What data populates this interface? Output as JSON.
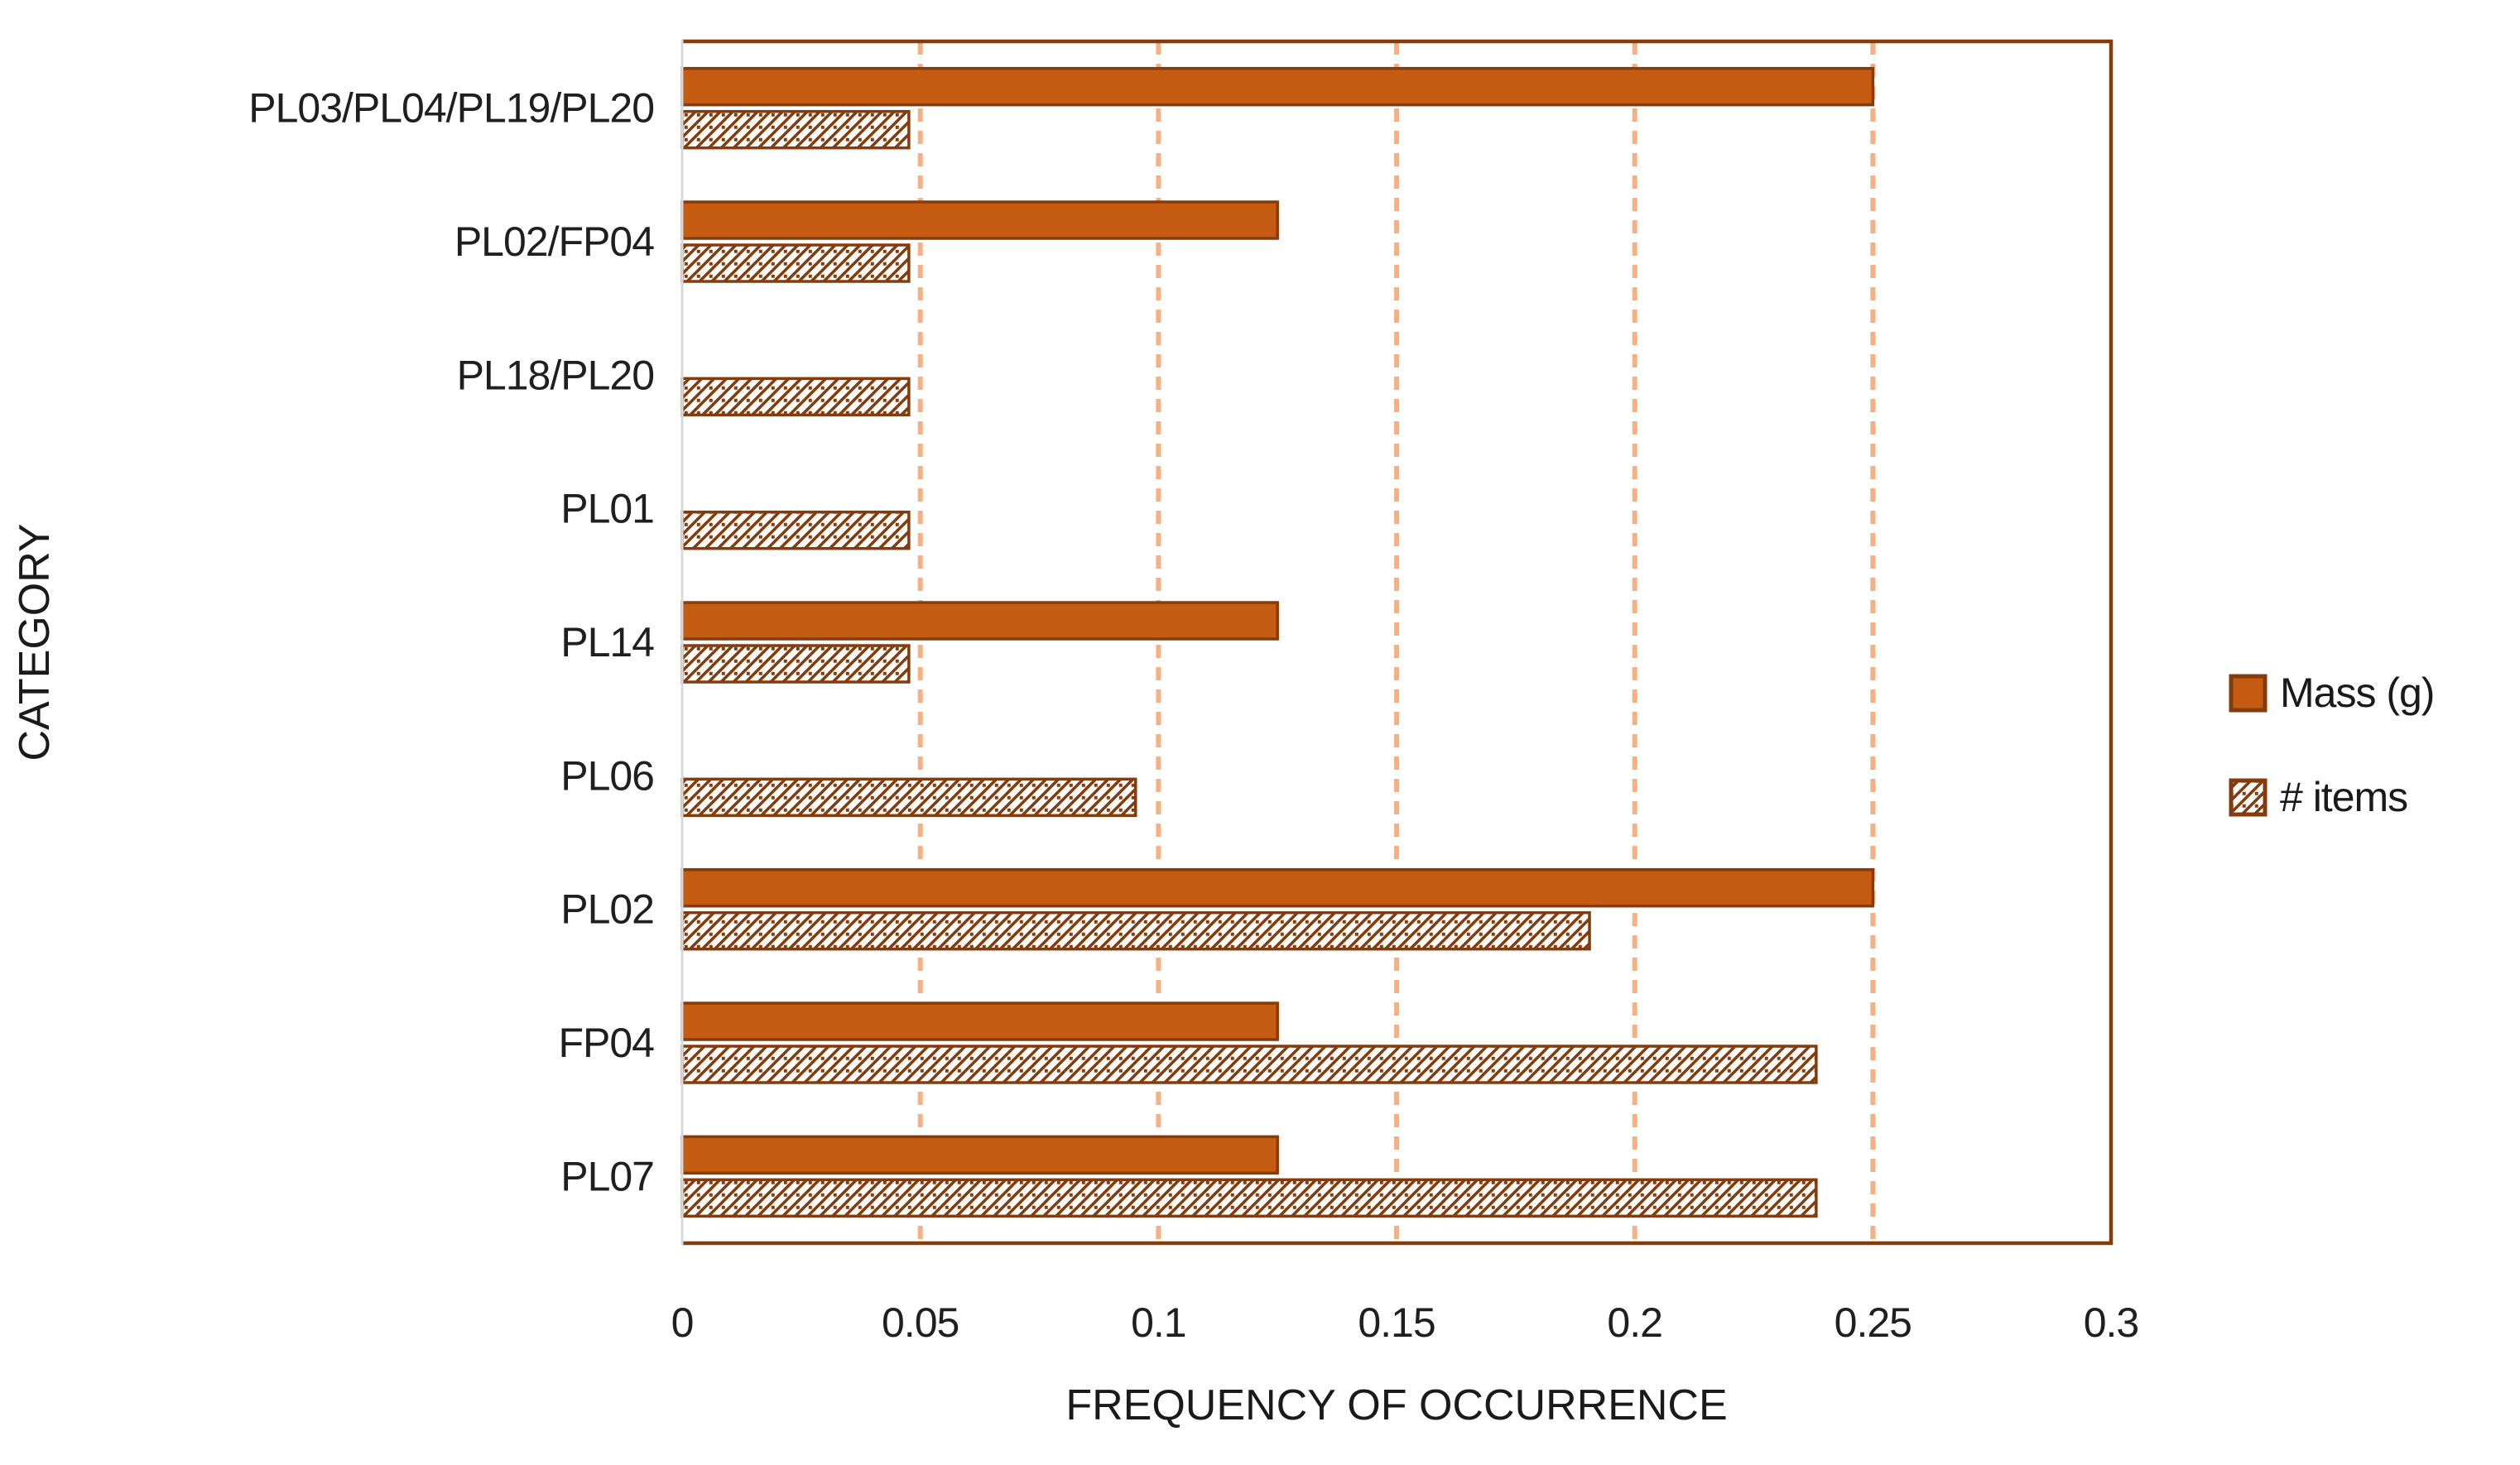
{
  "page": {
    "background": "#FFFFFF"
  },
  "chart_data": {
    "type": "bar",
    "orientation": "horizontal",
    "title": "",
    "xlabel": "FREQUENCY OF OCCURRENCE",
    "ylabel": "CATEGORY",
    "xlim": [
      0,
      0.3
    ],
    "xtick_labels": [
      "0",
      "0.05",
      "0.1",
      "0.15",
      "0.2",
      "0.25",
      "0.3"
    ],
    "grid": "vertical dashed gridlines at each x tick",
    "legend_position": "right of plot",
    "categories": [
      "PL03/PL04/PL19/PL20",
      "PL02/FP04",
      "PL18/PL20",
      "PL01",
      "PL14",
      "PL06",
      "PL02",
      "FP04",
      "PL07"
    ],
    "series": [
      {
        "name": "Mass (g)",
        "style": "solid",
        "values": [
          0.25,
          0.125,
          0,
          0,
          0.125,
          0,
          0.25,
          0.125,
          0.125
        ]
      },
      {
        "name": "# items",
        "style": "hatched",
        "values": [
          0.0476,
          0.0476,
          0.0476,
          0.0476,
          0.0476,
          0.0952,
          0.1905,
          0.2381,
          0.2381
        ]
      }
    ],
    "colors": {
      "bar_fill": "#C55A11",
      "bar_border": "#843C0C",
      "hatch": "#843C0C",
      "hatch_bg": "#FFFFFF",
      "gridline": "#F5B183",
      "plot_border": "#843C0C",
      "axis_line": "#D9D9D9",
      "text": "#1F1F1F"
    }
  }
}
